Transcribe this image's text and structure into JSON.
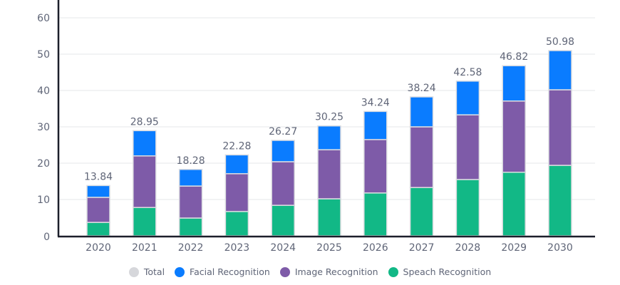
{
  "chart_data": {
    "type": "bar",
    "stacked": true,
    "title": "",
    "xlabel": "",
    "ylabel": "",
    "ylim": [
      0,
      60
    ],
    "yticks": [
      0,
      10,
      20,
      30,
      40,
      50,
      60
    ],
    "grid": true,
    "legend_position": "bottom-center",
    "categories": [
      "2020",
      "2021",
      "2022",
      "2023",
      "2024",
      "2025",
      "2026",
      "2027",
      "2028",
      "2029",
      "2030"
    ],
    "series": [
      {
        "name": "Speach Recognition",
        "color": "#12b886",
        "values": [
          3.7,
          7.8,
          4.9,
          6.7,
          8.4,
          10.2,
          11.8,
          13.3,
          15.5,
          17.5,
          19.4
        ]
      },
      {
        "name": "Image Recognition",
        "color": "#7e5ba8",
        "values": [
          6.9,
          14.2,
          8.8,
          10.4,
          12.0,
          13.5,
          14.7,
          16.7,
          17.8,
          19.6,
          20.8
        ]
      },
      {
        "name": "Facial Recognition",
        "color": "#0a7cff",
        "values": [
          3.24,
          6.95,
          4.58,
          5.18,
          5.87,
          6.55,
          7.74,
          8.24,
          9.28,
          9.72,
          10.78
        ]
      }
    ],
    "totals": [
      "13.84",
      "28.95",
      "18.28",
      "22.28",
      "26.27",
      "30.25",
      "34.24",
      "38.24",
      "42.58",
      "46.82",
      "50.98"
    ],
    "legend": [
      {
        "label": "Total",
        "color": "#d6d7db"
      },
      {
        "label": "Facial Recognition",
        "color": "#0a7cff"
      },
      {
        "label": "Image Recognition",
        "color": "#7e5ba8"
      },
      {
        "label": "Speach Recognition",
        "color": "#12b886"
      }
    ]
  }
}
